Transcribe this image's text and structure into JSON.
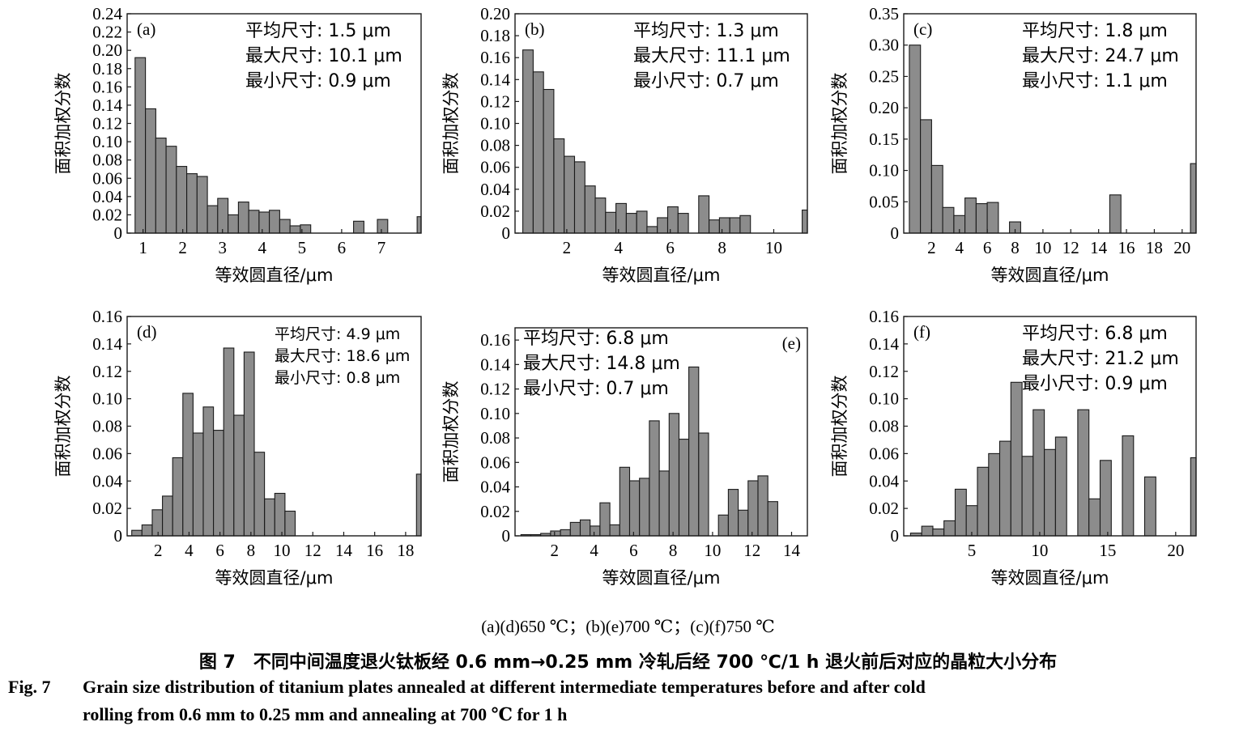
{
  "figure": {
    "sublabel": "(a)(d)650 ℃；(b)(e)700 ℃；(c)(f)750 ℃",
    "caption_cn": "图 7　不同中间温度退火钛板经 0.6 mm→0.25 mm 冷轧后经 700 ℃/1 h 退火前后对应的晶粒大小分布",
    "caption_en_label": "Fig. 7",
    "caption_en_line1": "Grain size distribution of titanium plates annealed at different intermediate temperatures before and after cold",
    "caption_en_line2": "rolling from 0.6 mm to 0.25 mm and annealing at 700 ℃ for 1 h"
  },
  "colors": {
    "bar": "#8c8c8c",
    "stroke": "#1a1a1a",
    "text": "#000000"
  },
  "chart_data": [
    {
      "id": "a",
      "type": "bar",
      "panel_label": "(a)",
      "xlabel": "等效圆直径/μm",
      "ylabel": "面积加权分数",
      "xlim": [
        0.6,
        8.0
      ],
      "ylim": [
        0,
        0.24
      ],
      "xticks": [
        1,
        2,
        3,
        4,
        5,
        6,
        7
      ],
      "yticks": [
        "0",
        "0.02",
        "0.04",
        "0.06",
        "0.08",
        "0.10",
        "0.12",
        "0.14",
        "0.16",
        "0.18",
        "0.20",
        "0.22",
        "0.24"
      ],
      "bar_width": 0.26,
      "x": [
        0.8,
        1.06,
        1.32,
        1.58,
        1.84,
        2.1,
        2.36,
        2.62,
        2.88,
        3.14,
        3.4,
        3.66,
        3.92,
        4.18,
        4.44,
        4.7,
        4.96,
        5.22,
        6.3,
        6.9,
        7.9
      ],
      "values": [
        0.192,
        0.136,
        0.104,
        0.095,
        0.073,
        0.065,
        0.062,
        0.03,
        0.038,
        0.02,
        0.034,
        0.025,
        0.023,
        0.025,
        0.015,
        0.008,
        0.009,
        0.0,
        0.013,
        0.015,
        0.018
      ],
      "annotations": [
        "平均尺寸: 1.5 μm",
        "最大尺寸: 10.1 μm",
        "最小尺寸: 0.9 μm"
      ],
      "annotation_position": "top-right"
    },
    {
      "id": "b",
      "type": "bar",
      "panel_label": "(b)",
      "xlabel": "等效圆直径/μm",
      "ylabel": "面积加权分数",
      "xlim": [
        0.0,
        11.3
      ],
      "ylim": [
        0,
        0.2
      ],
      "xticks": [
        2,
        4,
        6,
        8,
        10
      ],
      "yticks": [
        "0",
        "0.02",
        "0.04",
        "0.06",
        "0.08",
        "0.10",
        "0.12",
        "0.14",
        "0.16",
        "0.18",
        "0.20"
      ],
      "bar_width": 0.4,
      "x": [
        0.3,
        0.7,
        1.1,
        1.5,
        1.9,
        2.3,
        2.7,
        3.1,
        3.5,
        3.9,
        4.3,
        4.7,
        5.1,
        5.5,
        5.9,
        6.3,
        6.7,
        7.1,
        7.5,
        7.9,
        8.3,
        8.7,
        9.1,
        9.5,
        11.1
      ],
      "values": [
        0.167,
        0.147,
        0.131,
        0.086,
        0.07,
        0.065,
        0.043,
        0.032,
        0.019,
        0.027,
        0.018,
        0.02,
        0.006,
        0.014,
        0.024,
        0.018,
        0.0,
        0.034,
        0.012,
        0.014,
        0.014,
        0.016,
        0.0,
        0.0,
        0.021
      ],
      "annotations": [
        "平均尺寸: 1.3 μm",
        "最大尺寸: 11.1 μm",
        "最小尺寸: 0.7 μm"
      ],
      "annotation_position": "top-right"
    },
    {
      "id": "c",
      "type": "bar",
      "panel_label": "(c)",
      "xlabel": "等效圆直径/μm",
      "ylabel": "面积加权分数",
      "xlim": [
        0.0,
        21.0
      ],
      "ylim": [
        0,
        0.35
      ],
      "xticks": [
        2,
        4,
        6,
        8,
        10,
        12,
        14,
        16,
        18,
        20
      ],
      "yticks": [
        "0",
        "0.05",
        "0.10",
        "0.15",
        "0.20",
        "0.25",
        "0.30",
        "0.35"
      ],
      "bar_width": 0.8,
      "x": [
        0.4,
        1.2,
        2.0,
        2.8,
        3.6,
        4.4,
        5.2,
        6.0,
        6.8,
        7.6,
        8.4,
        14.8,
        20.6
      ],
      "values": [
        0.3,
        0.181,
        0.108,
        0.041,
        0.028,
        0.056,
        0.047,
        0.049,
        0.0,
        0.018,
        0.0,
        0.061,
        0.111
      ],
      "annotations": [
        "平均尺寸: 1.8 μm",
        "最大尺寸: 24.7 μm",
        "最小尺寸: 1.1 μm"
      ],
      "annotation_position": "top-right"
    },
    {
      "id": "d",
      "type": "bar",
      "panel_label": "(d)",
      "xlabel": "等效圆直径/μm",
      "ylabel": "面积加权分数",
      "xlim": [
        0.0,
        19.0
      ],
      "ylim": [
        0,
        0.16
      ],
      "xticks": [
        2,
        4,
        6,
        8,
        10,
        12,
        14,
        16,
        18
      ],
      "yticks": [
        "0",
        "0.02",
        "0.04",
        "0.06",
        "0.08",
        "0.10",
        "0.12",
        "0.14",
        "0.16"
      ],
      "bar_width": 0.66,
      "x": [
        0.3,
        0.96,
        1.62,
        2.28,
        2.94,
        3.6,
        4.26,
        4.92,
        5.58,
        6.24,
        6.9,
        7.56,
        8.22,
        8.88,
        9.54,
        10.2,
        10.86,
        18.7
      ],
      "values": [
        0.004,
        0.008,
        0.019,
        0.029,
        0.057,
        0.104,
        0.075,
        0.094,
        0.077,
        0.137,
        0.088,
        0.134,
        0.061,
        0.027,
        0.031,
        0.018,
        0.0,
        0.045
      ],
      "annotations": [
        "平均尺寸: 4.9 μm",
        "最大尺寸: 18.6 μm",
        "最小尺寸: 0.8 μm"
      ],
      "annotation_position": "top-right"
    },
    {
      "id": "e",
      "type": "bar",
      "panel_label": "(e)",
      "xlabel": "等效圆直径/μm",
      "ylabel": "面积加权分数",
      "xlim": [
        0.0,
        14.8
      ],
      "ylim": [
        0,
        0.17
      ],
      "xticks": [
        2,
        4,
        6,
        8,
        10,
        12,
        14
      ],
      "yticks": [
        "0",
        "0.02",
        "0.04",
        "0.06",
        "0.08",
        "0.10",
        "0.12",
        "0.14",
        "0.16"
      ],
      "bar_width": 0.5,
      "x": [
        0.3,
        0.8,
        1.3,
        1.8,
        2.3,
        2.8,
        3.3,
        3.8,
        4.3,
        4.8,
        5.3,
        5.8,
        6.3,
        6.8,
        7.3,
        7.8,
        8.3,
        8.8,
        9.3,
        9.8,
        10.3,
        10.8,
        11.3,
        11.8,
        12.3,
        12.8,
        13.3,
        13.8,
        14.3
      ],
      "values": [
        0.001,
        0.001,
        0.002,
        0.004,
        0.005,
        0.011,
        0.013,
        0.008,
        0.027,
        0.009,
        0.056,
        0.045,
        0.047,
        0.094,
        0.053,
        0.1,
        0.079,
        0.138,
        0.084,
        0.0,
        0.017,
        0.038,
        0.021,
        0.045,
        0.049,
        0.028,
        0.0,
        0.0,
        0.0
      ],
      "annotations": [
        "平均尺寸: 6.8 μm",
        "最大尺寸: 14.8 μm",
        "最小尺寸: 0.7 μm"
      ],
      "annotation_position": "top-left"
    },
    {
      "id": "f",
      "type": "bar",
      "panel_label": "(f)",
      "xlabel": "等效圆直径/μm",
      "ylabel": "面积加权分数",
      "xlim": [
        0.0,
        21.5
      ],
      "ylim": [
        0,
        0.16
      ],
      "xticks": [
        5,
        10,
        15,
        20
      ],
      "yticks": [
        "0",
        "0.02",
        "0.04",
        "0.06",
        "0.08",
        "0.10",
        "0.12",
        "0.14",
        "0.16"
      ],
      "bar_width": 0.82,
      "x": [
        0.5,
        1.32,
        2.14,
        2.96,
        3.78,
        4.6,
        5.42,
        6.24,
        7.06,
        7.88,
        8.7,
        9.52,
        10.34,
        11.16,
        12.8,
        13.62,
        14.44,
        16.08,
        17.72,
        21.1
      ],
      "values": [
        0.002,
        0.007,
        0.005,
        0.011,
        0.034,
        0.022,
        0.05,
        0.06,
        0.069,
        0.112,
        0.058,
        0.092,
        0.063,
        0.072,
        0.092,
        0.027,
        0.055,
        0.073,
        0.043,
        0.057
      ],
      "annotations": [
        "平均尺寸: 6.8 μm",
        "最大尺寸: 21.2 μm",
        "最小尺寸: 0.9 μm"
      ],
      "annotation_position": "top-right"
    }
  ]
}
